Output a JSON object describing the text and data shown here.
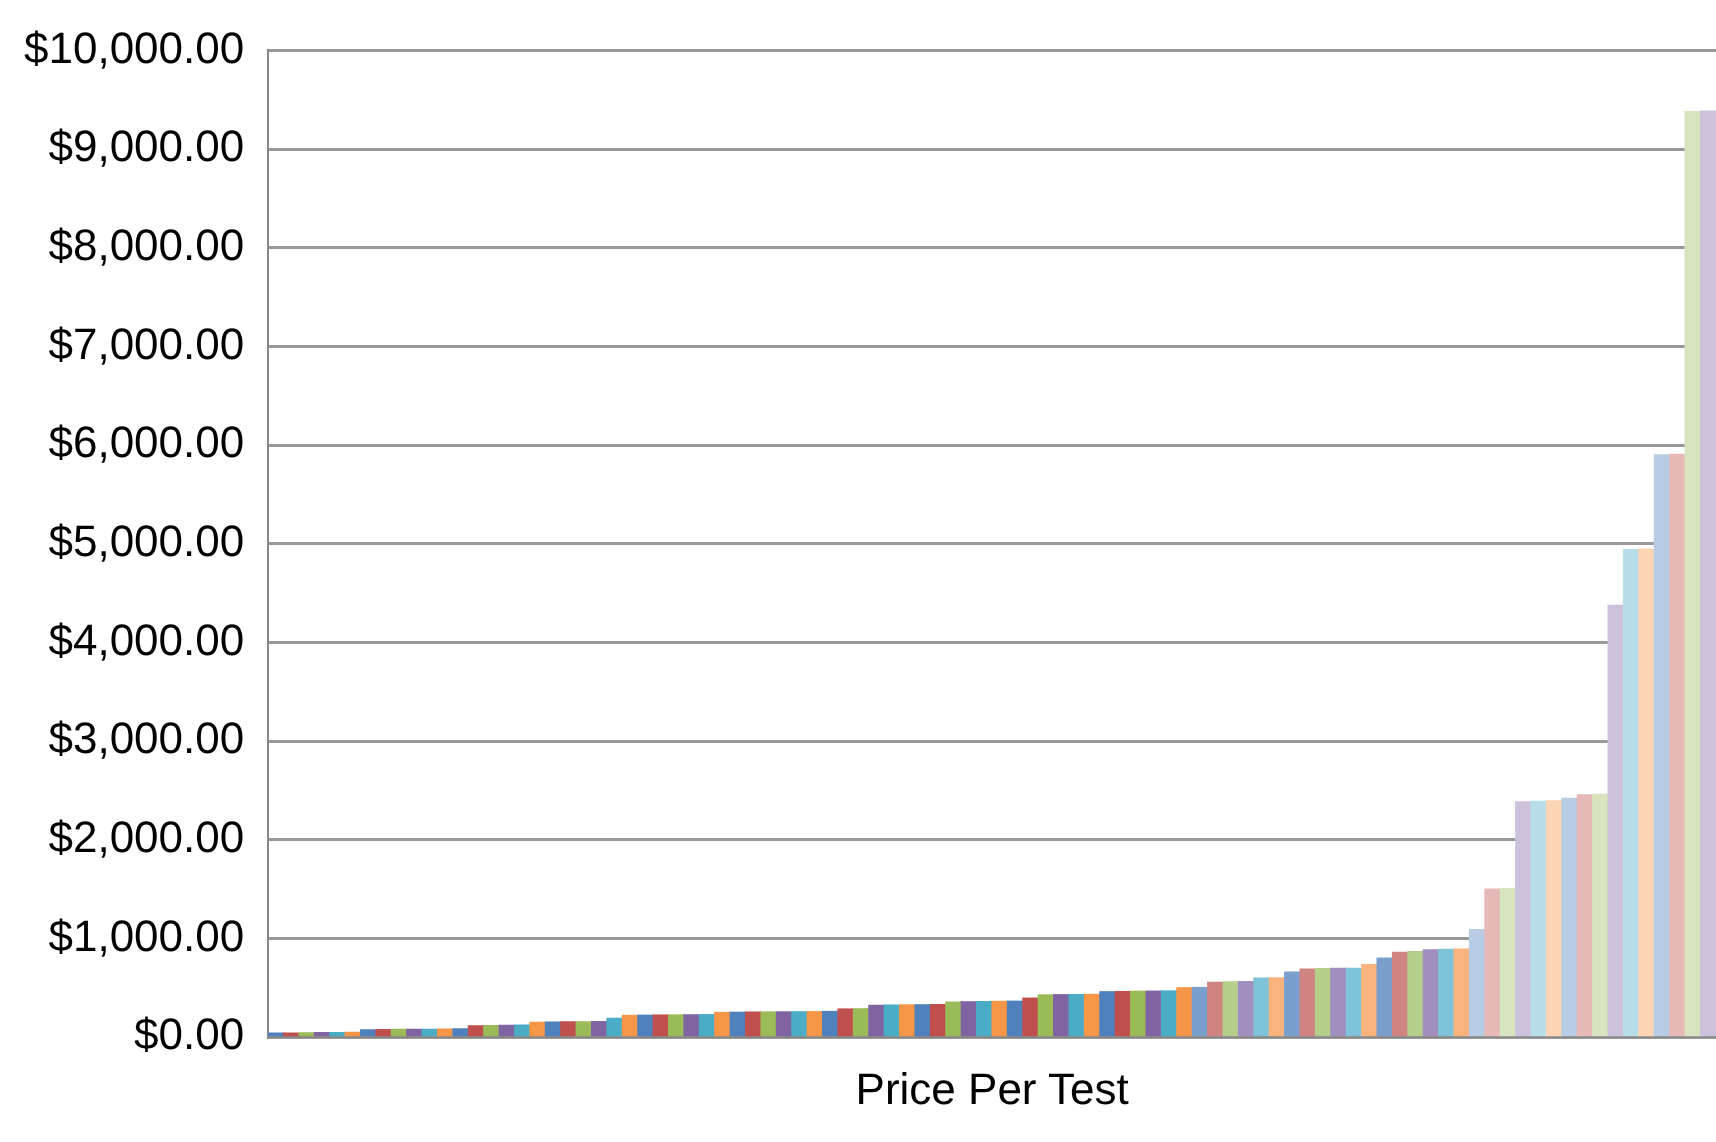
{
  "chart_data": {
    "type": "bar",
    "xlabel": "Price Per Test",
    "categories": [
      null,
      null,
      null,
      null,
      null,
      null,
      null,
      null,
      null,
      null,
      null,
      null,
      null,
      null,
      null,
      null,
      null,
      null,
      null,
      null,
      null,
      null,
      null,
      null,
      null,
      null,
      null,
      null,
      null,
      null,
      null,
      null,
      null,
      null,
      null,
      null,
      null,
      null,
      null,
      null,
      null,
      null,
      null,
      null,
      null,
      null,
      null,
      null,
      null,
      null,
      null,
      null,
      null,
      null,
      null,
      null,
      null,
      null,
      null,
      null,
      null,
      null,
      null,
      null,
      null,
      null,
      null,
      null,
      null,
      null,
      null,
      null,
      null,
      null,
      null,
      null,
      null,
      null,
      null,
      null,
      null,
      null,
      null,
      null,
      null,
      null,
      null,
      null,
      null,
      null,
      null,
      null,
      null,
      null
    ],
    "values": [
      40,
      42,
      44,
      45,
      47,
      48,
      75,
      77,
      78,
      80,
      80,
      82,
      83,
      115,
      118,
      120,
      122,
      150,
      152,
      155,
      156,
      158,
      190,
      220,
      222,
      224,
      225,
      226,
      228,
      250,
      252,
      254,
      255,
      256,
      257,
      258,
      260,
      285,
      287,
      322,
      325,
      327,
      328,
      330,
      355,
      358,
      360,
      362,
      364,
      395,
      428,
      430,
      431,
      433,
      460,
      462,
      465,
      466,
      468,
      500,
      503,
      555,
      560,
      562,
      598,
      602,
      660,
      690,
      694,
      696,
      698,
      735,
      800,
      860,
      866,
      885,
      890,
      892,
      1090,
      1500,
      1505,
      2385,
      2390,
      2395,
      2420,
      2455,
      2460,
      4375,
      4940,
      4945,
      5900,
      5905,
      9380,
      9385
    ],
    "colors": [
      "#4f81bd",
      "#c0504d",
      "#9bbb59",
      "#8064a2",
      "#4bacc6",
      "#f79646",
      "#4f81bd",
      "#c0504d",
      "#9bbb59",
      "#8064a2",
      "#4bacc6",
      "#f79646",
      "#4f81bd",
      "#c0504d",
      "#9bbb59",
      "#8064a2",
      "#4bacc6",
      "#f79646",
      "#4f81bd",
      "#c0504d",
      "#9bbb59",
      "#8064a2",
      "#4bacc6",
      "#f79646",
      "#4f81bd",
      "#c0504d",
      "#9bbb59",
      "#8064a2",
      "#4bacc6",
      "#f79646",
      "#4f81bd",
      "#c0504d",
      "#9bbb59",
      "#8064a2",
      "#4bacc6",
      "#f79646",
      "#4f81bd",
      "#c0504d",
      "#9bbb59",
      "#8064a2",
      "#4bacc6",
      "#f79646",
      "#4f81bd",
      "#c0504d",
      "#9bbb59",
      "#8064a2",
      "#4bacc6",
      "#f79646",
      "#4f81bd",
      "#c0504d",
      "#9bbb59",
      "#8064a2",
      "#4bacc6",
      "#f79646",
      "#4f81bd",
      "#c0504d",
      "#9bbb59",
      "#8064a2",
      "#4bacc6",
      "#f79646",
      "#7b9fcd",
      "#d08482",
      "#b5ce8a",
      "#a18fbf",
      "#7fc3d9",
      "#f9b37e",
      "#7b9fcd",
      "#d08482",
      "#b5ce8a",
      "#a18fbf",
      "#7fc3d9",
      "#f9b37e",
      "#7b9fcd",
      "#d08482",
      "#b5ce8a",
      "#a18fbf",
      "#7fc3d9",
      "#f9b37e",
      "#b8cce4",
      "#e6b9b8",
      "#d7e4bd",
      "#ccc1da",
      "#b7dee8",
      "#fcd5b5",
      "#b8cce4",
      "#e6b9b8",
      "#d7e4bd",
      "#ccc1da",
      "#b7dee8",
      "#fcd5b5",
      "#b8cce4",
      "#e6b9b8",
      "#d7e4bd",
      "#ccc1da"
    ],
    "ylim": [
      0,
      10000
    ],
    "yticks": [
      {
        "value": 0,
        "label": "$0.00"
      },
      {
        "value": 1000,
        "label": "$1,000.00"
      },
      {
        "value": 2000,
        "label": "$2,000.00"
      },
      {
        "value": 3000,
        "label": "$3,000.00"
      },
      {
        "value": 4000,
        "label": "$4,000.00"
      },
      {
        "value": 5000,
        "label": "$5,000.00"
      },
      {
        "value": 6000,
        "label": "$6,000.00"
      },
      {
        "value": 7000,
        "label": "$7,000.00"
      },
      {
        "value": 8000,
        "label": "$8,000.00"
      },
      {
        "value": 9000,
        "label": "$9,000.00"
      },
      {
        "value": 10000,
        "label": "$10,000.00"
      }
    ],
    "grid": "y",
    "legend": false,
    "tick_labels": "y"
  }
}
